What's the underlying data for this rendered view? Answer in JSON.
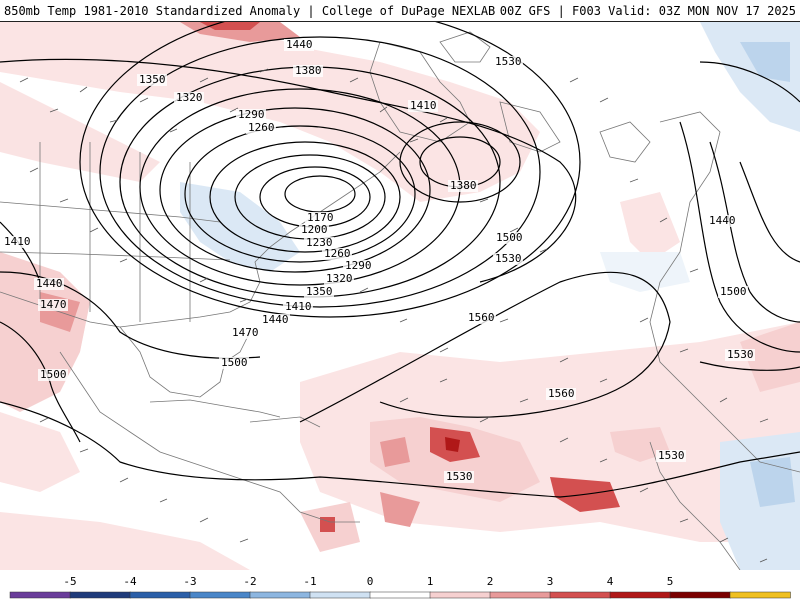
{
  "header": {
    "title_left": "850mb Temp 1981-2010 Standardized Anomaly | College of DuPage NEXLAB",
    "title_right": "00Z GFS | F003 Valid: 03Z MON NOV 17 2025"
  },
  "contour_labels": [
    "1440",
    "1380",
    "1350",
    "1320",
    "1290",
    "1260",
    "1170",
    "1200",
    "1230",
    "1260",
    "1290",
    "1320",
    "1350",
    "1410",
    "1440",
    "1470",
    "1500",
    "1410",
    "1380",
    "1530",
    "1500",
    "1530",
    "1560",
    "1560",
    "1530",
    "1530",
    "1440",
    "1500",
    "1530",
    "1410",
    "1440",
    "1470",
    "1500"
  ],
  "colorbar": {
    "ticks": [
      "-5",
      "-4",
      "-3",
      "-2",
      "-1",
      "0",
      "1",
      "2",
      "3",
      "4",
      "5"
    ],
    "colors": [
      "#6a3d9a",
      "#1f3b7a",
      "#2b5fa8",
      "#4a86c8",
      "#8db6e0",
      "#cfe1f2",
      "#ffffff",
      "#f6d0d0",
      "#e89a9a",
      "#d35050",
      "#b01818",
      "#7a0000",
      "#f0c020"
    ]
  }
}
